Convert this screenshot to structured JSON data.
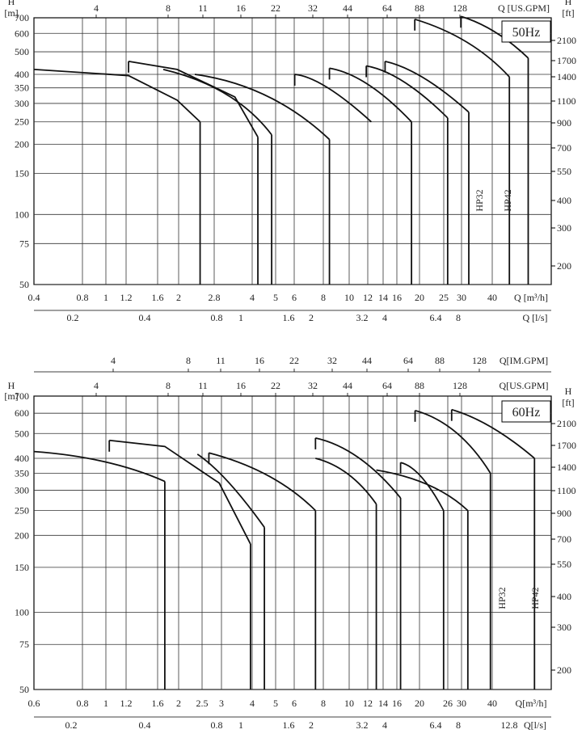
{
  "charts": [
    {
      "type": "line",
      "title": "50Hz",
      "y_axis": {
        "label_lines": [
          "H",
          "[m]"
        ],
        "ticks": [
          50,
          75,
          100,
          150,
          200,
          250,
          300,
          350,
          400,
          500,
          600,
          700
        ],
        "range": [
          50,
          700
        ],
        "scale": "log"
      },
      "y2_axis": {
        "label_lines": [
          "H",
          "[ft]"
        ],
        "ticks": [
          "2100",
          "1700",
          "1400",
          "1100",
          "900",
          "700",
          "550",
          "400",
          "300",
          "200"
        ]
      },
      "x_axis": {
        "label": "Q [m³/h]",
        "ticks": [
          "0.4",
          "0.8",
          "1",
          "1.2",
          "1.6",
          "2",
          "2.8",
          "4",
          "5",
          "6",
          "8",
          "10",
          "12",
          "14",
          "16",
          "20",
          "25",
          "30",
          "40"
        ]
      },
      "x_ls": {
        "label": "Q [l/s]",
        "ticks": [
          "0.2",
          "0.4",
          "0.8",
          "1",
          "1.6",
          "2",
          "3.2",
          "4",
          "6.4",
          "8"
        ]
      },
      "top_axes": [
        {
          "label": "Q [US.GPM]",
          "ticks": [
            "4",
            "8",
            "11",
            "16",
            "22",
            "32",
            "44",
            "64",
            "88",
            "128"
          ]
        }
      ],
      "grid": true,
      "chart_data": {
        "curve_labels": [
          "HP32",
          "HP42"
        ],
        "curves": [
          {
            "name": "",
            "points": [
              [
                0.4,
                420
              ],
              [
                1.0,
                395
              ],
              [
                1.6,
                310
              ],
              [
                2.0,
                250
              ]
            ]
          },
          {
            "name": "",
            "points": [
              [
                1.0,
                455
              ],
              [
                1.6,
                420
              ],
              [
                2.8,
                320
              ],
              [
                3.5,
                215
              ]
            ]
          },
          {
            "name": "",
            "points": [
              [
                1.4,
                420
              ],
              [
                2.8,
                355
              ],
              [
                4.0,
                220
              ]
            ]
          },
          {
            "name": "",
            "points": [
              [
                1.9,
                400
              ],
              [
                4.0,
                360
              ],
              [
                7.0,
                210
              ]
            ]
          },
          {
            "name": "",
            "points": [
              [
                5.0,
                400
              ],
              [
                6.5,
                390
              ],
              [
                10.5,
                250
              ]
            ]
          },
          {
            "name": "",
            "points": [
              [
                7.0,
                425
              ],
              [
                10.0,
                400
              ],
              [
                15.5,
                250
              ]
            ]
          },
          {
            "name": "",
            "points": [
              [
                10.0,
                435
              ],
              [
                14.0,
                410
              ],
              [
                22.0,
                260
              ]
            ]
          },
          {
            "name": "",
            "points": [
              [
                12.0,
                455
              ],
              [
                17.0,
                420
              ],
              [
                27.0,
                275
              ]
            ]
          },
          {
            "name": "",
            "points": [
              [
                16.0,
                690
              ],
              [
                28.0,
                580
              ],
              [
                40.0,
                390
              ]
            ]
          },
          {
            "name": "",
            "points": [
              [
                25.0,
                710
              ],
              [
                35.0,
                640
              ],
              [
                48.0,
                470
              ]
            ]
          }
        ],
        "drops": [
          [
            2.0,
            250
          ],
          [
            3.5,
            215
          ],
          [
            4.0,
            220
          ],
          [
            7.0,
            210
          ],
          [
            15.5,
            250
          ],
          [
            22.0,
            260
          ],
          [
            27.0,
            275
          ],
          [
            40.0,
            390
          ],
          [
            48.0,
            470
          ]
        ],
        "steps": [
          [
            1.0,
            455
          ],
          [
            5.0,
            400
          ],
          [
            7.0,
            425
          ],
          [
            10.0,
            435
          ],
          [
            12.0,
            455
          ],
          [
            16.0,
            690
          ],
          [
            25.0,
            710
          ]
        ]
      }
    },
    {
      "type": "line",
      "title": "60Hz",
      "y_axis": {
        "label_lines": [
          "H",
          "[m]"
        ],
        "ticks": [
          50,
          75,
          100,
          150,
          200,
          250,
          300,
          350,
          400,
          500,
          600,
          700
        ],
        "range": [
          50,
          700
        ],
        "scale": "log"
      },
      "y2_axis": {
        "label_lines": [
          "H",
          "[ft]"
        ],
        "ticks": [
          "2100",
          "1700",
          "1400",
          "1100",
          "900",
          "700",
          "550",
          "400",
          "300",
          "200"
        ]
      },
      "x_axis": {
        "label": "Q[m³/h]",
        "ticks": [
          "0.6",
          "0.8",
          "1",
          "1.2",
          "1.6",
          "2",
          "2.5",
          "3",
          "4",
          "5",
          "6",
          "8",
          "10",
          "12",
          "14",
          "16",
          "20",
          "26",
          "30",
          "40"
        ]
      },
      "x_ls": {
        "label": "Q[l/s]",
        "ticks": [
          "0.2",
          "0.4",
          "0.8",
          "1",
          "1.6",
          "2",
          "3.2",
          "4",
          "6.4",
          "8",
          "12.8"
        ]
      },
      "top_axes": [
        {
          "label": "Q[IM.GPM]",
          "ticks": [
            "4",
            "8",
            "11",
            "16",
            "22",
            "32",
            "44",
            "64",
            "88",
            "128"
          ]
        },
        {
          "label": "Q[US.GPM]",
          "ticks": [
            "4",
            "8",
            "11",
            "16",
            "22",
            "32",
            "44",
            "64",
            "88",
            "128"
          ]
        }
      ],
      "grid": true,
      "chart_data": {
        "curve_labels": [
          "HP32",
          "HP42"
        ],
        "curves": [
          {
            "name": "",
            "points": [
              [
                0.6,
                425
              ],
              [
                1.2,
                405
              ],
              [
                2.0,
                325
              ]
            ]
          },
          {
            "name": "",
            "points": [
              [
                1.2,
                470
              ],
              [
                2.0,
                445
              ],
              [
                3.3,
                320
              ],
              [
                4.4,
                185
              ]
            ]
          },
          {
            "name": "",
            "points": [
              [
                2.7,
                415
              ],
              [
                3.5,
                350
              ],
              [
                5.0,
                215
              ]
            ]
          },
          {
            "name": "",
            "points": [
              [
                3.0,
                420
              ],
              [
                5.5,
                360
              ],
              [
                8.0,
                250
              ]
            ]
          },
          {
            "name": "",
            "points": [
              [
                8.0,
                480
              ],
              [
                12.0,
                440
              ],
              [
                17.5,
                280
              ]
            ]
          },
          {
            "name": "",
            "points": [
              [
                8.0,
                400
              ],
              [
                11.0,
                370
              ],
              [
                14.0,
                265
              ]
            ]
          },
          {
            "name": "",
            "points": [
              [
                17.5,
                385
              ],
              [
                21.0,
                370
              ],
              [
                26.0,
                250
              ]
            ]
          },
          {
            "name": "",
            "points": [
              [
                14.0,
                360
              ],
              [
                24.0,
                330
              ],
              [
                32.5,
                250
              ]
            ]
          },
          {
            "name": "",
            "points": [
              [
                20.0,
                615
              ],
              [
                30.0,
                550
              ],
              [
                40.0,
                350
              ]
            ]
          },
          {
            "name": "",
            "points": [
              [
                28.0,
                620
              ],
              [
                40.0,
                560
              ],
              [
                60.0,
                400
              ]
            ]
          }
        ],
        "drops": [
          [
            2.0,
            325
          ],
          [
            4.4,
            185
          ],
          [
            5.0,
            215
          ],
          [
            8.0,
            250
          ],
          [
            14.0,
            265
          ],
          [
            17.5,
            280
          ],
          [
            26.0,
            250
          ],
          [
            32.5,
            250
          ],
          [
            40.0,
            350
          ],
          [
            60.0,
            400
          ]
        ],
        "steps": [
          [
            1.2,
            470
          ],
          [
            3.0,
            420
          ],
          [
            8.0,
            480
          ],
          [
            17.5,
            385
          ],
          [
            20.0,
            615
          ],
          [
            28.0,
            620
          ]
        ]
      }
    }
  ]
}
